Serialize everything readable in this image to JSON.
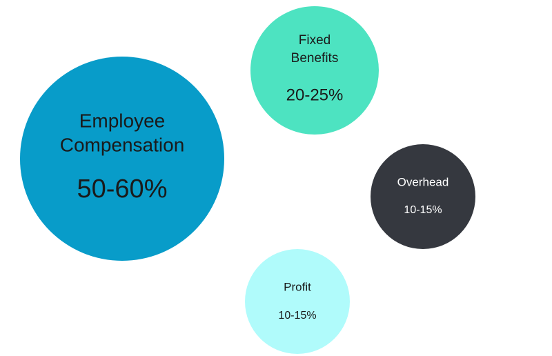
{
  "nodes": [
    {
      "label_lines": [
        "Employee",
        "Compensation"
      ],
      "value": "50-60%"
    },
    {
      "label_lines": [
        "Fixed",
        "Benefits"
      ],
      "value": "20-25%"
    },
    {
      "label_lines": [
        "Overhead"
      ],
      "value": "10-15%"
    },
    {
      "label_lines": [
        "Profit"
      ],
      "value": "10-15%"
    }
  ]
}
